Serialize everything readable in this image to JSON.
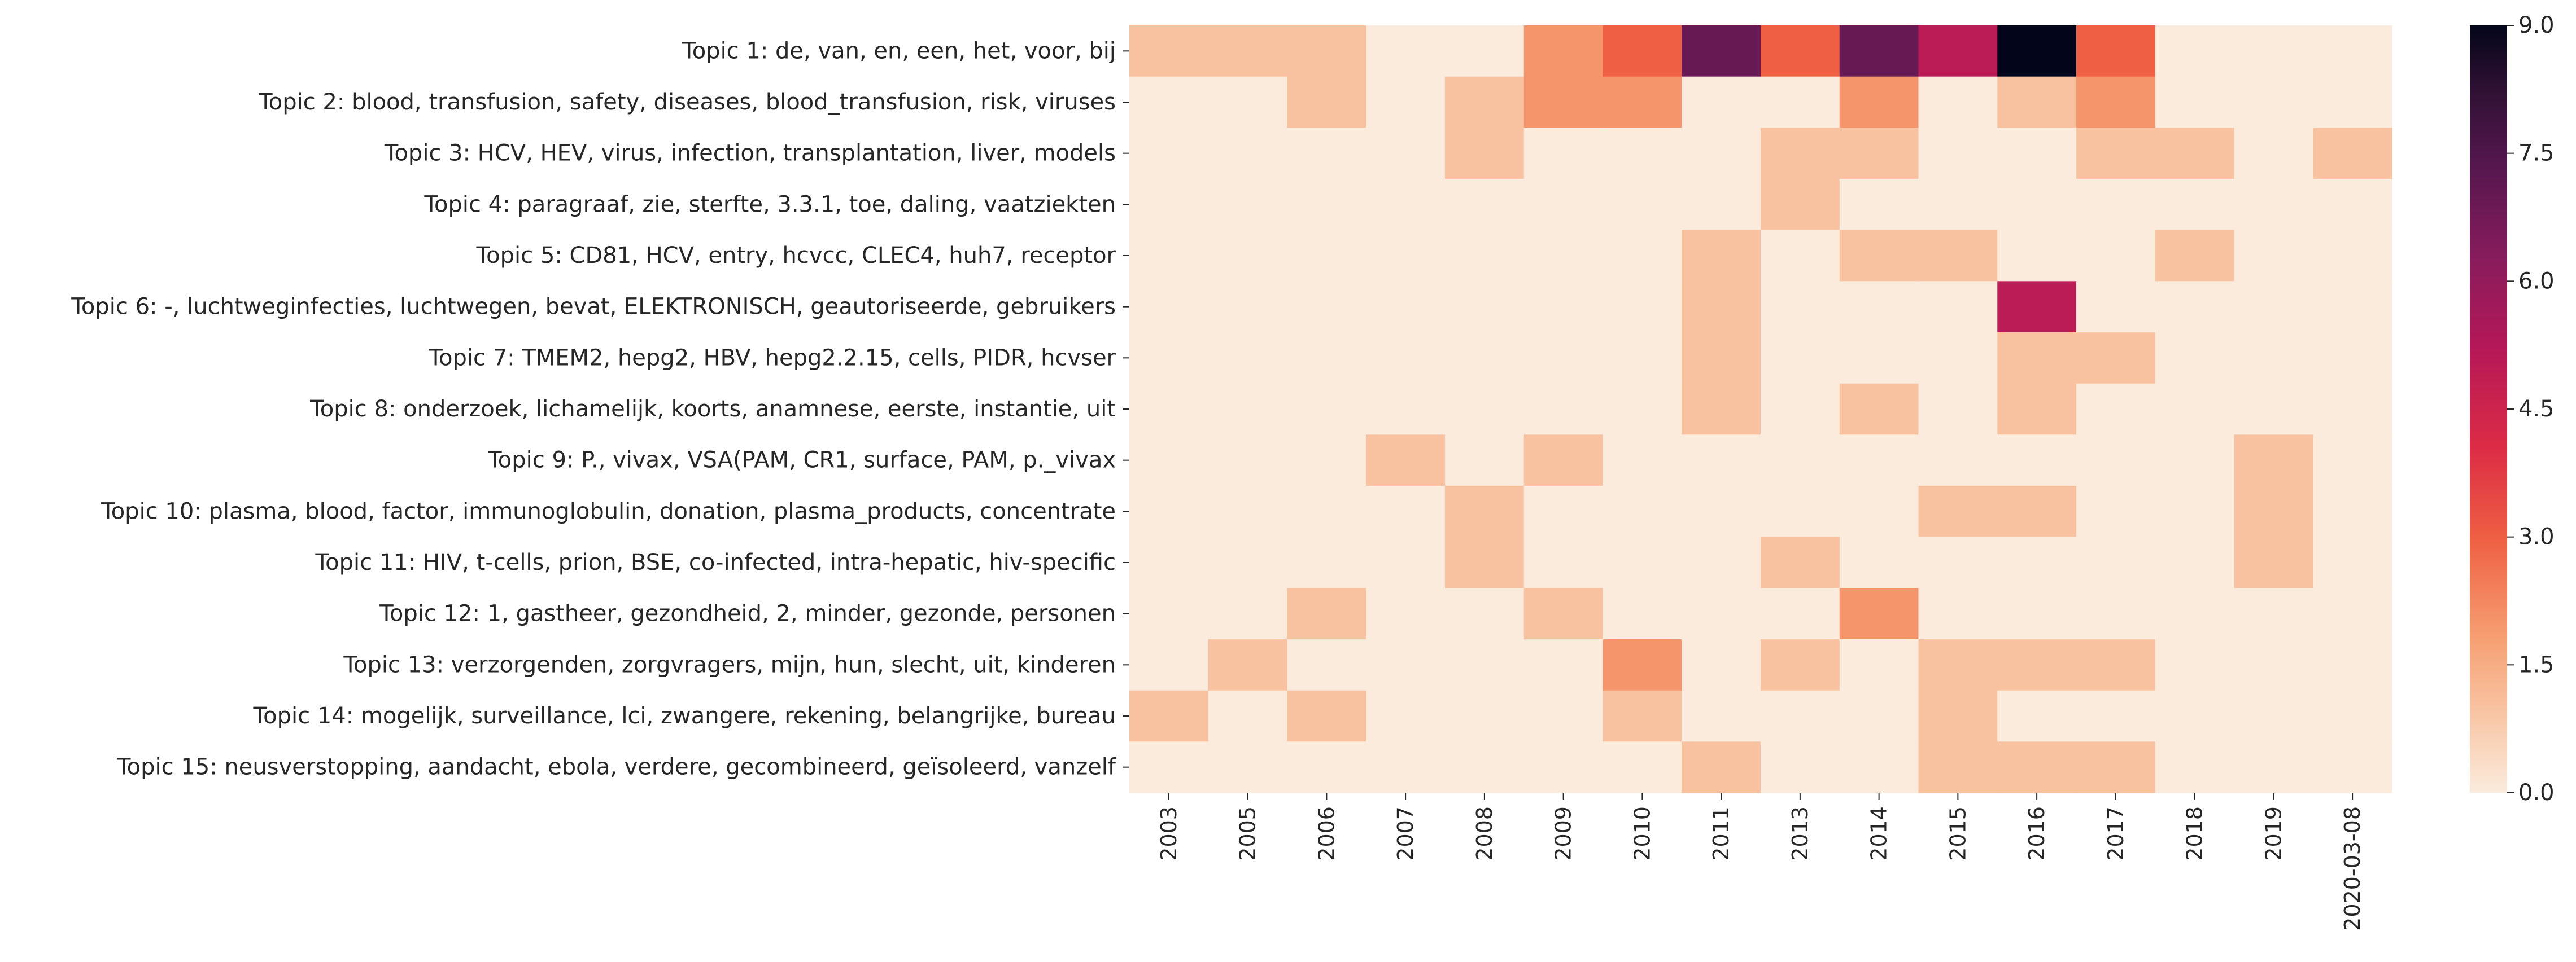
{
  "chart_data": {
    "type": "heatmap",
    "x": [
      "2003",
      "2005",
      "2006",
      "2007",
      "2008",
      "2009",
      "2010",
      "2011",
      "2013",
      "2014",
      "2015",
      "2016",
      "2017",
      "2018",
      "2019",
      "2020-03-08"
    ],
    "y": [
      "Topic 1: de, van, en, een, het, voor, bij",
      "Topic 2: blood, transfusion, safety, diseases, blood_transfusion, risk, viruses",
      "Topic 3: HCV, HEV, virus, infection, transplantation, liver, models",
      "Topic 4: paragraaf, zie, sterfte, 3.3.1, toe, daling, vaatziekten",
      "Topic 5: CD81, HCV, entry, hcvcc, CLEC4, huh7, receptor",
      "Topic 6: -, luchtweginfecties, luchtwegen, bevat, ELEKTRONISCH, geautoriseerde, gebruikers",
      "Topic 7: TMEM2, hepg2, HBV, hepg2.2.15, cells, PIDR, hcvser",
      "Topic 8: onderzoek, lichamelijk, koorts, anamnese, eerste, instantie, uit",
      "Topic 9: P., vivax, VSA(PAM, CR1, surface, PAM, p._vivax",
      "Topic 10: plasma, blood, factor, immunoglobulin, donation, plasma_products, concentrate",
      "Topic 11: HIV, t-cells, prion, BSE, co-infected, intra-hepatic, hiv-specific",
      "Topic 12: 1, gastheer, gezondheid, 2, minder, gezonde, personen",
      "Topic 13: verzorgenden, zorgvragers, mijn, hun, slecht, uit, kinderen",
      "Topic 14: mogelijk, surveillance, lci, zwangere, rekening, belangrijke, bureau",
      "Topic 15: neusverstopping, aandacht, ebola, verdere, gecombineerd, geïsoleerd, vanzelf"
    ],
    "values": [
      [
        1,
        1,
        1,
        0,
        0,
        2,
        3,
        7,
        3,
        7,
        5,
        9,
        3,
        0,
        0,
        0
      ],
      [
        0,
        0,
        1,
        0,
        1,
        2,
        2,
        0,
        0,
        2,
        0,
        1,
        2,
        0,
        0,
        0
      ],
      [
        0,
        0,
        0,
        0,
        1,
        0,
        0,
        0,
        1,
        1,
        0,
        0,
        1,
        1,
        0,
        1
      ],
      [
        0,
        0,
        0,
        0,
        0,
        0,
        0,
        0,
        1,
        0,
        0,
        0,
        0,
        0,
        0,
        0
      ],
      [
        0,
        0,
        0,
        0,
        0,
        0,
        0,
        1,
        0,
        1,
        1,
        0,
        0,
        1,
        0,
        0
      ],
      [
        0,
        0,
        0,
        0,
        0,
        0,
        0,
        1,
        0,
        0,
        0,
        5,
        0,
        0,
        0,
        0
      ],
      [
        0,
        0,
        0,
        0,
        0,
        0,
        0,
        1,
        0,
        0,
        0,
        1,
        1,
        0,
        0,
        0
      ],
      [
        0,
        0,
        0,
        0,
        0,
        0,
        0,
        1,
        0,
        1,
        0,
        1,
        0,
        0,
        0,
        0
      ],
      [
        0,
        0,
        0,
        1,
        0,
        1,
        0,
        0,
        0,
        0,
        0,
        0,
        0,
        0,
        1,
        0
      ],
      [
        0,
        0,
        0,
        0,
        1,
        0,
        0,
        0,
        0,
        0,
        1,
        1,
        0,
        0,
        1,
        0
      ],
      [
        0,
        0,
        0,
        0,
        1,
        0,
        0,
        0,
        1,
        0,
        0,
        0,
        0,
        0,
        1,
        0
      ],
      [
        0,
        0,
        1,
        0,
        0,
        1,
        0,
        0,
        0,
        2,
        0,
        0,
        0,
        0,
        0,
        0
      ],
      [
        0,
        1,
        0,
        0,
        0,
        0,
        2,
        0,
        1,
        0,
        1,
        1,
        1,
        0,
        0,
        0
      ],
      [
        1,
        0,
        1,
        0,
        0,
        0,
        1,
        0,
        0,
        0,
        1,
        0,
        0,
        0,
        0,
        0
      ],
      [
        0,
        0,
        0,
        0,
        0,
        0,
        0,
        1,
        0,
        0,
        1,
        1,
        1,
        0,
        0,
        0
      ]
    ],
    "colorbar": {
      "min": 0,
      "max": 9,
      "ticks": [
        "0.0",
        "1.5",
        "3.0",
        "4.5",
        "6.0",
        "7.5",
        "9.0"
      ]
    },
    "colormap": "rocket_r",
    "grid": false
  }
}
